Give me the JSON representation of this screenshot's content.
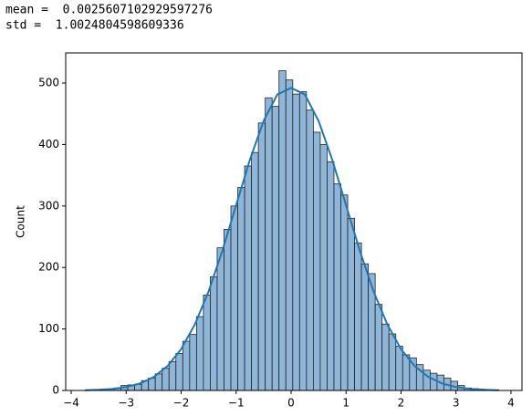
{
  "output_lines": [
    "mean =  0.0025607102929597276",
    "std =  1.0024804598609336"
  ],
  "chart_data": {
    "type": "histogram",
    "ylabel": "Count",
    "bins": [
      -3.72,
      -3.595,
      -3.47,
      -3.345,
      -3.22,
      -3.095,
      -2.97,
      -2.845,
      -2.72,
      -2.595,
      -2.47,
      -2.345,
      -2.22,
      -2.095,
      -1.97,
      -1.845,
      -1.72,
      -1.595,
      -1.47,
      -1.345,
      -1.22,
      -1.095,
      -0.97,
      -0.845,
      -0.72,
      -0.595,
      -0.47,
      -0.345,
      -0.22,
      -0.095,
      0.03,
      0.155,
      0.28,
      0.405,
      0.53,
      0.655,
      0.78,
      0.905,
      1.03,
      1.155,
      1.28,
      1.405,
      1.53,
      1.655,
      1.78,
      1.905,
      2.03,
      2.155,
      2.28,
      2.405,
      2.53,
      2.655,
      2.78,
      2.905,
      3.03,
      3.155,
      3.28,
      3.405,
      3.53,
      3.655,
      3.78
    ],
    "values": [
      1,
      1,
      2,
      2,
      4,
      8,
      9,
      10,
      16,
      20,
      27,
      36,
      47,
      60,
      80,
      91,
      120,
      155,
      185,
      232,
      262,
      300,
      330,
      365,
      387,
      435,
      476,
      462,
      520,
      505,
      482,
      486,
      456,
      420,
      400,
      372,
      336,
      318,
      280,
      240,
      206,
      190,
      140,
      108,
      92,
      72,
      58,
      53,
      42,
      33,
      28,
      25,
      20,
      15,
      8,
      4,
      3,
      2,
      1,
      1
    ],
    "color": "#8fb6d8",
    "edgecolor": "#222222",
    "kde": {
      "color": "#1f77b4",
      "x": [
        -3.75,
        -3.5,
        -3.25,
        -3.0,
        -2.75,
        -2.5,
        -2.25,
        -2.0,
        -1.75,
        -1.5,
        -1.25,
        -1.0,
        -0.75,
        -0.5,
        -0.25,
        0,
        0.25,
        0.5,
        0.75,
        1.0,
        1.25,
        1.5,
        1.75,
        2.0,
        2.25,
        2.5,
        2.75,
        3.0,
        3.25,
        3.5,
        3.75
      ],
      "values": [
        0.4,
        1.1,
        2.5,
        5.5,
        11.3,
        21.8,
        39.5,
        67.2,
        107.4,
        161.2,
        227.3,
        301.3,
        374.9,
        438.4,
        481.4,
        492,
        481.4,
        438.4,
        374.9,
        301.3,
        227.3,
        161.2,
        107.4,
        67.2,
        39.5,
        21.8,
        11.3,
        5.5,
        2.5,
        1.1,
        0.4
      ]
    },
    "xlim": [
      -4.1,
      4.2
    ],
    "ylim": [
      0,
      549
    ],
    "xticks": [
      {
        "value": -4,
        "label": "−4"
      },
      {
        "value": -3,
        "label": "−3"
      },
      {
        "value": -2,
        "label": "−2"
      },
      {
        "value": -1,
        "label": "−1"
      },
      0,
      1,
      2,
      3,
      4
    ],
    "yticks": [
      0,
      100,
      200,
      300,
      400,
      500
    ]
  }
}
